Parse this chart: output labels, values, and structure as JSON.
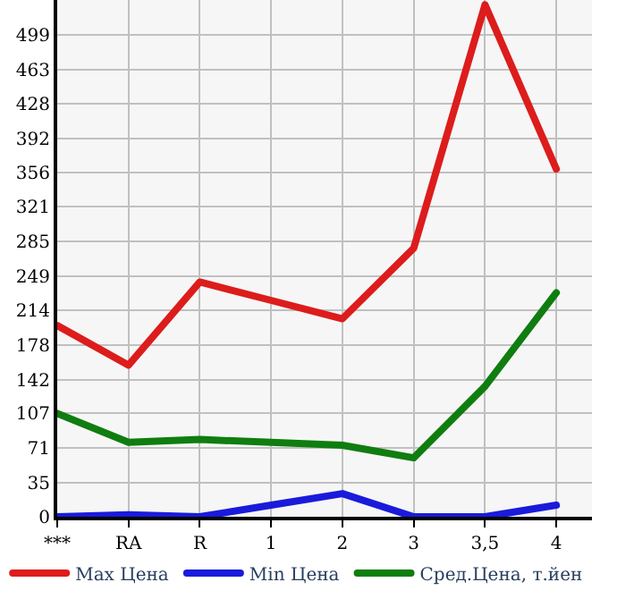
{
  "chart_data": {
    "type": "line",
    "categories": [
      "***",
      "RA",
      "R",
      "1",
      "2",
      "3",
      "3,5",
      "4"
    ],
    "series": [
      {
        "name": "Max Цена",
        "color": "#dd1c1c",
        "values": [
          198,
          157,
          243,
          224,
          205,
          278,
          530,
          360
        ]
      },
      {
        "name": "Min Цена",
        "color": "#1a1adb",
        "values": [
          0,
          2,
          0,
          12,
          24,
          0,
          0,
          12
        ]
      },
      {
        "name": "Сред.Цена, т.йен",
        "color": "#0f7d0f",
        "values": [
          107,
          77,
          80,
          77,
          74,
          61,
          135,
          232
        ]
      }
    ],
    "ylim": [
      0,
      535
    ],
    "yticks": [
      0,
      35,
      71,
      107,
      142,
      178,
      214,
      249,
      285,
      321,
      356,
      392,
      428,
      463,
      499
    ],
    "grid": true,
    "legend": "bottom",
    "marker": "none",
    "line_style": "solid"
  }
}
